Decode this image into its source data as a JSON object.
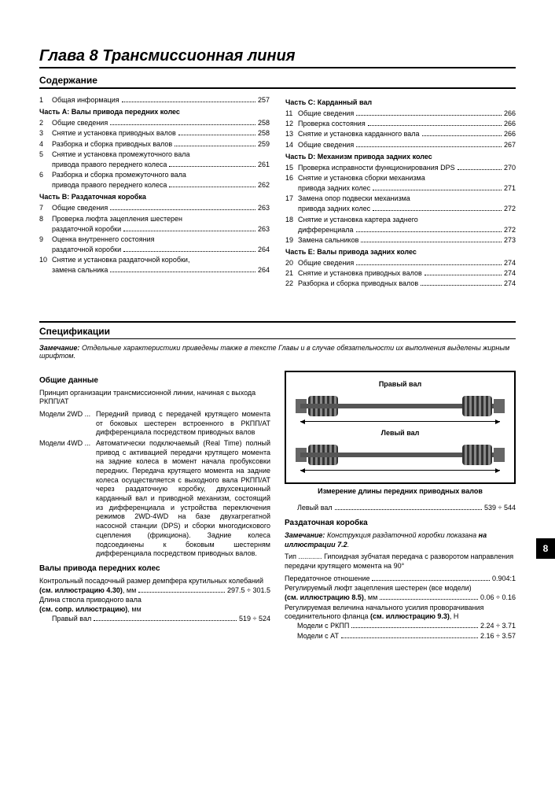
{
  "chapterTitle": "Глава 8 Трансмиссионная линия",
  "contentsTitle": "Содержание",
  "specTitle": "Спецификации",
  "tabNumber": "8",
  "toc": {
    "left": [
      {
        "n": "1",
        "t": "Общая информация",
        "p": "257"
      },
      {
        "part": "Часть A: Валы привода передних колес"
      },
      {
        "n": "2",
        "t": "Общие сведения",
        "p": "258"
      },
      {
        "n": "3",
        "t": "Снятие и установка приводных валов",
        "p": "258"
      },
      {
        "n": "4",
        "t": "Разборка и сборка приводных валов",
        "p": "259"
      },
      {
        "n": "5",
        "t": "Снятие и установка промежуточного вала",
        "cont": "привода правого переднего колеса",
        "p": "261"
      },
      {
        "n": "6",
        "t": "Разборка и сборка промежуточного вала",
        "cont": "привода правого переднего колеса",
        "p": "262"
      },
      {
        "part": "Часть B: Раздаточная коробка"
      },
      {
        "n": "7",
        "t": "Общие сведения",
        "p": "263"
      },
      {
        "n": "8",
        "t": "Проверка люфта зацепления шестерен",
        "cont": "раздаточной коробки",
        "p": "263"
      },
      {
        "n": "9",
        "t": "Оценка внутреннего состояния",
        "cont": "раздаточной коробки",
        "p": "264"
      },
      {
        "n": "10",
        "t": "Снятие и установка раздаточной коробки,",
        "cont": "замена сальника",
        "p": "264"
      }
    ],
    "right": [
      {
        "part": "Часть C: Карданный вал"
      },
      {
        "n": "11",
        "t": "Общие сведения",
        "p": "266"
      },
      {
        "n": "12",
        "t": "Проверка состояния",
        "p": "266"
      },
      {
        "n": "13",
        "t": "Снятие и установка карданного вала",
        "p": "266"
      },
      {
        "n": "14",
        "t": "Общие сведения",
        "p": "267"
      },
      {
        "part": "Часть D: Механизм привода задних колес"
      },
      {
        "n": "15",
        "t": "Проверка исправности функционирования DPS",
        "p": "270"
      },
      {
        "n": "16",
        "t": "Снятие и установка сборки механизма",
        "cont": "привода задних колес",
        "p": "271"
      },
      {
        "n": "17",
        "t": "Замена опор подвески механизма",
        "cont": "привода задних колес",
        "p": "272"
      },
      {
        "n": "18",
        "t": "Снятие и установка картера заднего",
        "cont": "дифференциала",
        "p": "272"
      },
      {
        "n": "19",
        "t": "Замена сальников",
        "p": "273"
      },
      {
        "part": "Часть E: Валы привода задних колес"
      },
      {
        "n": "20",
        "t": "Общие сведения",
        "p": "274"
      },
      {
        "n": "21",
        "t": "Снятие и установка приводных валов",
        "p": "274"
      },
      {
        "n": "22",
        "t": "Разборка и сборка приводных валов",
        "p": "274"
      }
    ]
  },
  "note": {
    "lead": "Замечание:",
    "text": "Отдельные характеристики приведены также в тексте Главы и в случае обязательности их выполнения выделены жирным шрифтом."
  },
  "left": {
    "h1": "Общие данные",
    "intro": "Принцип организации трансмиссионной линии, начиная с выхода РКПП/АТ",
    "m2wdLabel": "Модели 2WD ...",
    "m2wdText": "Передний привод с передачей крутящего момента от боковых шестерен встроенного в РКПП/АТ дифференциала посредством приводных валов",
    "m4wdLabel": "Модели 4WD ...",
    "m4wdText": "Автоматически подключаемый (Real Time) полный привод с активацией передачи крутящего момента на задние колеса в момент начала пробуксовки передних. Передача крутящего момента на задние колеса осуществляется с выходного вала РКПП/АТ через раздаточную коробку, двухсекционный карданный вал и приводной механизм, состоящий из дифференциала и устройства переключения режимов 2WD-4WD на базе двухагрегатной насосной станции (DPS) и сборки многодискового сцепления (фрикциона). Задние колеса подсоединены к боковым шестерням дифференциала посредством приводных валов.",
    "h2": "Валы привода передних колес",
    "spec1a": "Контрольный посадочный размер демпфера крутильных колебаний",
    "spec1b": "(см. иллюстрацию 4.30)",
    "spec1u": ", мм",
    "spec1v": "297.5 ÷ 301.5",
    "spec2a": "Длина ствола приводного вала",
    "spec2b": "(см. сопр. иллюстрацию)",
    "spec2u": ", мм",
    "spec3l": "Правый вал",
    "spec3v": "519 ÷ 524"
  },
  "right": {
    "figLabelR": "Правый вал",
    "figLabelL": "Левый вал",
    "figCaption": "Измерение длины передних приводных валов",
    "leftShaft": "Левый вал",
    "leftShaftVal": "539 ÷ 544",
    "h1": "Раздаточная коробка",
    "noteLead": "Замечание:",
    "noteText": "Конструкция раздаточной коробки показана",
    "noteRef": "на иллюстрации 7.2",
    "typeLabel": "Тип",
    "typeDots": "............",
    "typeText": "Гипоидная зубчатая передача с разворотом направления передачи крутящего момента на 90°",
    "ratioLabel": "Передаточное отношение",
    "ratioVal": "0.904:1",
    "backlashLabel": "Регулируемый люфт зацепления шестерен (все модели)",
    "backlashRef": "(см. иллюстрацию 8.5)",
    "backlashU": ", мм",
    "backlashVal": "0.06 ÷ 0.16",
    "preloadLabel": "Регулируемая величина начального усилия проворачивания соединительного фланца",
    "preloadRef": "(см. иллюстрацию 9.3)",
    "preloadU": ", Н",
    "rkppLabel": "Модели с РКПП",
    "rkppVal": "2.24 ÷ 3.71",
    "atLabel": "Модели с АТ",
    "atVal": "2.16 ÷ 3.57"
  }
}
